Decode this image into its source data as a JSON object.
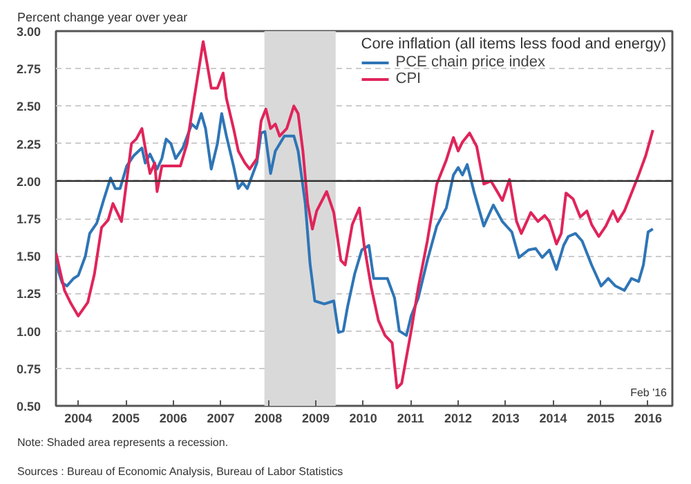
{
  "chart_data": {
    "type": "line",
    "ylabel": "Percent change year over year",
    "legend_title": "Core inflation (all items less food and energy)",
    "xlim": [
      2003.53,
      2016.51
    ],
    "ylim": [
      0.5,
      3.0
    ],
    "xticks": [
      {
        "value": 2004,
        "label": "2004"
      },
      {
        "value": 2005,
        "label": "2005"
      },
      {
        "value": 2006,
        "label": "2006"
      },
      {
        "value": 2007,
        "label": "2007"
      },
      {
        "value": 2008,
        "label": "2008"
      },
      {
        "value": 2009,
        "label": "2009"
      },
      {
        "value": 2010,
        "label": "2010"
      },
      {
        "value": 2011,
        "label": "2011"
      },
      {
        "value": 2012,
        "label": "2012"
      },
      {
        "value": 2013,
        "label": "2013"
      },
      {
        "value": 2014,
        "label": "2014"
      },
      {
        "value": 2015,
        "label": "2015"
      },
      {
        "value": 2016,
        "label": "2016"
      }
    ],
    "yticks": [
      {
        "value": 0.5,
        "label": "0.50"
      },
      {
        "value": 0.75,
        "label": "0.75"
      },
      {
        "value": 1.0,
        "label": "1.00"
      },
      {
        "value": 1.25,
        "label": "1.25"
      },
      {
        "value": 1.5,
        "label": "1.50"
      },
      {
        "value": 1.75,
        "label": "1.75"
      },
      {
        "value": 2.0,
        "label": "2.00"
      },
      {
        "value": 2.25,
        "label": "2.25"
      },
      {
        "value": 2.5,
        "label": "2.50"
      },
      {
        "value": 2.75,
        "label": "2.75"
      },
      {
        "value": 3.0,
        "label": "3.00"
      }
    ],
    "grid": "y",
    "legend": "top right",
    "marker": "none",
    "line_style": "solid",
    "series": [
      {
        "name": "PCE chain price index",
        "color": "#2e75b6",
        "x": [
          2003.53,
          2003.66,
          2003.76,
          2003.9,
          2004.0,
          2004.15,
          2004.24,
          2004.39,
          2004.54,
          2004.68,
          2004.78,
          2004.88,
          2005.02,
          2005.17,
          2005.27,
          2005.34,
          2005.41,
          2005.51,
          2005.66,
          2005.76,
          2005.85,
          2005.95,
          2006.05,
          2006.2,
          2006.39,
          2006.49,
          2006.59,
          2006.68,
          2006.8,
          2006.93,
          2007.02,
          2007.12,
          2007.27,
          2007.37,
          2007.46,
          2007.56,
          2007.76,
          2007.85,
          2007.93,
          2008.05,
          2008.15,
          2008.34,
          2008.54,
          2008.63,
          2008.78,
          2008.88,
          2008.98,
          2009.18,
          2009.38,
          2009.48,
          2009.58,
          2009.67,
          2009.82,
          2009.97,
          2010.12,
          2010.22,
          2010.37,
          2010.51,
          2010.66,
          2010.76,
          2010.91,
          2011.01,
          2011.16,
          2011.35,
          2011.55,
          2011.75,
          2011.9,
          2012.0,
          2012.09,
          2012.19,
          2012.34,
          2012.54,
          2012.74,
          2012.93,
          2013.13,
          2013.28,
          2013.48,
          2013.63,
          2013.77,
          2013.92,
          2014.07,
          2014.22,
          2014.32,
          2014.47,
          2014.61,
          2014.81,
          2015.01,
          2015.16,
          2015.31,
          2015.5,
          2015.65,
          2015.8,
          2015.9,
          2016.0,
          2016.1
        ],
        "values": [
          1.45,
          1.32,
          1.3,
          1.35,
          1.37,
          1.5,
          1.65,
          1.72,
          1.88,
          2.02,
          1.95,
          1.95,
          2.1,
          2.17,
          2.2,
          2.22,
          2.12,
          2.18,
          2.08,
          2.15,
          2.28,
          2.25,
          2.15,
          2.22,
          2.38,
          2.35,
          2.45,
          2.35,
          2.08,
          2.25,
          2.45,
          2.3,
          2.1,
          1.95,
          1.99,
          1.95,
          2.12,
          2.32,
          2.33,
          2.05,
          2.2,
          2.3,
          2.3,
          2.2,
          1.85,
          1.45,
          1.2,
          1.18,
          1.2,
          0.99,
          1.0,
          1.16,
          1.38,
          1.54,
          1.57,
          1.35,
          1.35,
          1.35,
          1.22,
          1.0,
          0.97,
          1.1,
          1.22,
          1.47,
          1.7,
          1.82,
          2.04,
          2.09,
          2.04,
          2.11,
          1.92,
          1.7,
          1.84,
          1.73,
          1.66,
          1.49,
          1.54,
          1.55,
          1.49,
          1.54,
          1.41,
          1.57,
          1.63,
          1.65,
          1.6,
          1.44,
          1.3,
          1.35,
          1.3,
          1.27,
          1.35,
          1.33,
          1.44,
          1.66,
          1.68
        ]
      },
      {
        "name": "CPI",
        "color": "#e0245a",
        "x": [
          2003.53,
          2003.71,
          2003.85,
          2004.0,
          2004.2,
          2004.34,
          2004.49,
          2004.63,
          2004.73,
          2004.91,
          2005.12,
          2005.22,
          2005.34,
          2005.41,
          2005.51,
          2005.61,
          2005.66,
          2005.76,
          2006.15,
          2006.29,
          2006.44,
          2006.54,
          2006.63,
          2006.73,
          2006.8,
          2006.93,
          2007.05,
          2007.12,
          2007.27,
          2007.37,
          2007.51,
          2007.61,
          2007.76,
          2007.85,
          2007.95,
          2008.05,
          2008.15,
          2008.24,
          2008.39,
          2008.54,
          2008.63,
          2008.73,
          2008.83,
          2008.93,
          2009.02,
          2009.23,
          2009.38,
          2009.53,
          2009.62,
          2009.77,
          2009.92,
          2010.02,
          2010.17,
          2010.32,
          2010.46,
          2010.61,
          2010.71,
          2010.81,
          2011.01,
          2011.16,
          2011.35,
          2011.55,
          2011.75,
          2011.9,
          2012.0,
          2012.09,
          2012.24,
          2012.39,
          2012.54,
          2012.69,
          2012.84,
          2012.93,
          2013.08,
          2013.23,
          2013.33,
          2013.53,
          2013.68,
          2013.82,
          2013.92,
          2014.07,
          2014.17,
          2014.27,
          2014.42,
          2014.57,
          2014.71,
          2014.81,
          2014.96,
          2015.11,
          2015.26,
          2015.36,
          2015.5,
          2015.65,
          2015.8,
          2015.95,
          2016.1
        ],
        "values": [
          1.52,
          1.27,
          1.18,
          1.1,
          1.19,
          1.38,
          1.69,
          1.74,
          1.85,
          1.73,
          2.25,
          2.28,
          2.35,
          2.22,
          2.05,
          2.12,
          1.93,
          2.1,
          2.1,
          2.25,
          2.55,
          2.75,
          2.93,
          2.75,
          2.62,
          2.62,
          2.72,
          2.55,
          2.35,
          2.2,
          2.12,
          2.08,
          2.15,
          2.4,
          2.48,
          2.35,
          2.38,
          2.3,
          2.35,
          2.5,
          2.45,
          2.2,
          1.85,
          1.68,
          1.8,
          1.93,
          1.79,
          1.47,
          1.44,
          1.71,
          1.82,
          1.57,
          1.29,
          1.07,
          0.97,
          0.92,
          0.62,
          0.65,
          1.0,
          1.29,
          1.6,
          1.98,
          2.14,
          2.29,
          2.2,
          2.26,
          2.32,
          2.23,
          1.98,
          2.0,
          1.92,
          1.87,
          2.01,
          1.73,
          1.65,
          1.79,
          1.73,
          1.77,
          1.73,
          1.58,
          1.65,
          1.92,
          1.88,
          1.76,
          1.8,
          1.71,
          1.63,
          1.7,
          1.8,
          1.73,
          1.8,
          1.92,
          2.04,
          2.17,
          2.34
        ]
      }
    ],
    "ref_lines": [
      {
        "axis": "y",
        "value": 2.0,
        "color": "#333333",
        "line_style": "solid"
      }
    ],
    "bands": [
      {
        "axis": "x",
        "from": 2007.92,
        "to": 2009.42,
        "color": "#d9d9d9"
      }
    ],
    "annotations": [
      "Feb '16",
      "Note: Shaded area represents a recession.",
      "Sources : Bureau of Economic Analysis, Bureau of Labor Statistics"
    ]
  }
}
